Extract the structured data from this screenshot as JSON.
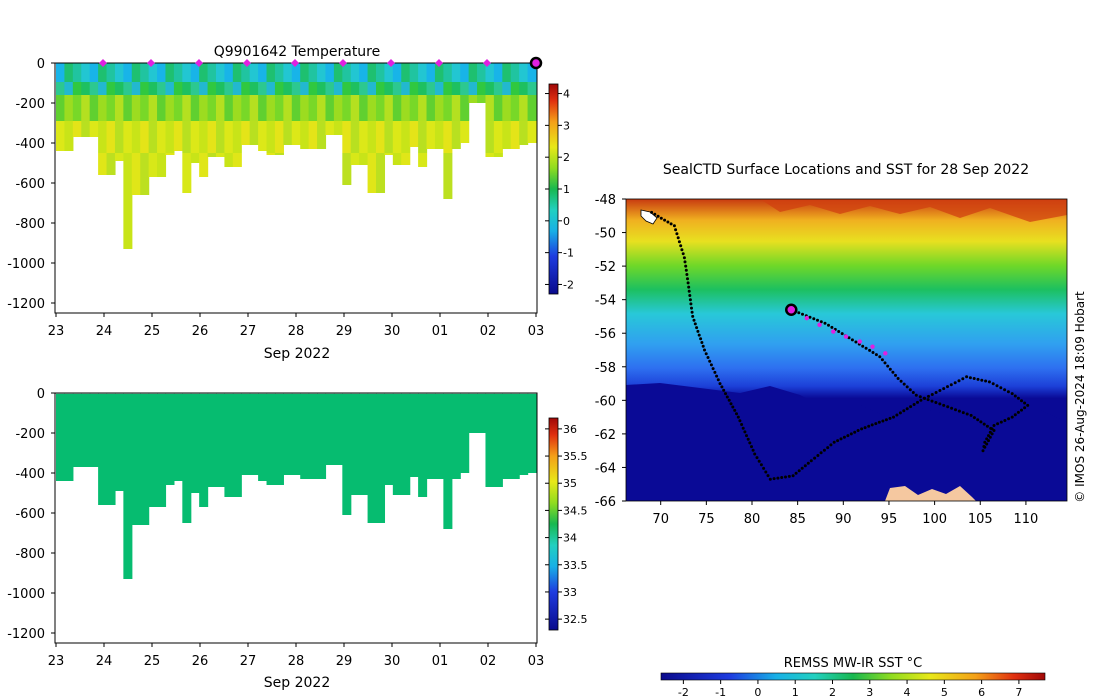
{
  "chart_data": [
    {
      "type": "heatmap",
      "name": "temperature-section",
      "title": "Q9901642  Temperature",
      "xlabel": "Sep 2022",
      "x_ticks": [
        "23",
        "24",
        "25",
        "26",
        "27",
        "28",
        "29",
        "30",
        "01",
        "02",
        "03"
      ],
      "y_ticks": [
        "0",
        "-200",
        "-400",
        "-600",
        "-800",
        "-1000",
        "-1200"
      ],
      "ylim": [
        -1250,
        0
      ],
      "colorbar": {
        "ticks": [
          "-2",
          "-1",
          "0",
          "1",
          "2",
          "3",
          "4"
        ],
        "range": [
          -2.3,
          4.3
        ]
      },
      "profile_markers_days": [
        1,
        2,
        3,
        4,
        5,
        6,
        7,
        8,
        9
      ],
      "current_profile_day": 10,
      "profile_depths_m": [
        440,
        440,
        370,
        370,
        370,
        560,
        560,
        490,
        930,
        660,
        660,
        570,
        570,
        460,
        440,
        650,
        500,
        570,
        470,
        470,
        520,
        520,
        410,
        410,
        440,
        460,
        460,
        410,
        410,
        430,
        430,
        430,
        360,
        360,
        610,
        510,
        510,
        650,
        650,
        460,
        510,
        510,
        420,
        520,
        430,
        430,
        680,
        430,
        400,
        200,
        200,
        470,
        470,
        430,
        430,
        410,
        400
      ]
    },
    {
      "type": "heatmap",
      "name": "salinity-section",
      "title": "",
      "xlabel": "Sep 2022",
      "x_ticks": [
        "23",
        "24",
        "25",
        "26",
        "27",
        "28",
        "29",
        "30",
        "01",
        "02",
        "03"
      ],
      "y_ticks": [
        "0",
        "-200",
        "-400",
        "-600",
        "-800",
        "-1000",
        "-1200"
      ],
      "ylim": [
        -1250,
        0
      ],
      "colorbar": {
        "ticks": [
          "32.5",
          "33",
          "33.5",
          "34",
          "34.5",
          "35",
          "35.5",
          "36"
        ],
        "range": [
          32.3,
          36.2
        ]
      },
      "uniform_value": 34.1
    },
    {
      "type": "heatmap",
      "name": "sst-map",
      "title": "SealCTD Surface Locations and SST for 28 Sep 2022",
      "x_ticks": [
        "70",
        "75",
        "80",
        "85",
        "90",
        "95",
        "100",
        "105",
        "110"
      ],
      "y_ticks": [
        "-48",
        "-50",
        "-52",
        "-54",
        "-56",
        "-58",
        "-60",
        "-62",
        "-64",
        "-66"
      ],
      "xlim": [
        66.2,
        114.5
      ],
      "ylim": [
        -66,
        -48
      ],
      "colorbar_label": "REMSS MW-IR SST °C",
      "colorbar_ticks": [
        "-2",
        "-1",
        "0",
        "1",
        "2",
        "3",
        "4",
        "5",
        "6",
        "7"
      ],
      "colorbar_range": [
        -2.6,
        7.7
      ],
      "credit": "© IMOS 26-Aug-2024 18:09 Hobart",
      "current_position": {
        "lon": 84.3,
        "lat": -54.6
      },
      "recent_positions": [
        {
          "lon": 86.0,
          "lat": -55.1
        },
        {
          "lon": 87.4,
          "lat": -55.5
        },
        {
          "lon": 88.9,
          "lat": -55.9
        },
        {
          "lon": 90.3,
          "lat": -56.2
        },
        {
          "lon": 91.8,
          "lat": -56.5
        },
        {
          "lon": 93.2,
          "lat": -56.8
        },
        {
          "lon": 94.6,
          "lat": -57.2
        }
      ],
      "track": [
        {
          "lon": 69.0,
          "lat": -48.8
        },
        {
          "lon": 71.5,
          "lat": -49.6
        },
        {
          "lon": 72.6,
          "lat": -51.5
        },
        {
          "lon": 73.0,
          "lat": -53.0
        },
        {
          "lon": 73.5,
          "lat": -55.0
        },
        {
          "lon": 74.8,
          "lat": -57.0
        },
        {
          "lon": 76.5,
          "lat": -59.0
        },
        {
          "lon": 78.5,
          "lat": -61.0
        },
        {
          "lon": 80.3,
          "lat": -63.2
        },
        {
          "lon": 82.0,
          "lat": -64.7
        },
        {
          "lon": 84.5,
          "lat": -64.5
        },
        {
          "lon": 86.5,
          "lat": -63.6
        },
        {
          "lon": 89.0,
          "lat": -62.5
        },
        {
          "lon": 92.0,
          "lat": -61.7
        },
        {
          "lon": 95.5,
          "lat": -61.0
        },
        {
          "lon": 98.5,
          "lat": -60.0
        },
        {
          "lon": 101.0,
          "lat": -59.3
        },
        {
          "lon": 103.5,
          "lat": -58.6
        },
        {
          "lon": 106.0,
          "lat": -58.9
        },
        {
          "lon": 108.5,
          "lat": -59.6
        },
        {
          "lon": 110.2,
          "lat": -60.3
        },
        {
          "lon": 108.5,
          "lat": -61.0
        },
        {
          "lon": 106.5,
          "lat": -61.5
        },
        {
          "lon": 105.5,
          "lat": -62.5
        },
        {
          "lon": 105.3,
          "lat": -63.0
        },
        {
          "lon": 106.5,
          "lat": -61.8
        },
        {
          "lon": 104.0,
          "lat": -60.9
        },
        {
          "lon": 101.0,
          "lat": -60.3
        },
        {
          "lon": 98.0,
          "lat": -59.7
        },
        {
          "lon": 96.0,
          "lat": -58.7
        },
        {
          "lon": 94.0,
          "lat": -57.4
        },
        {
          "lon": 91.0,
          "lat": -56.4
        },
        {
          "lon": 88.0,
          "lat": -55.4
        },
        {
          "lon": 84.3,
          "lat": -54.6
        }
      ]
    }
  ]
}
